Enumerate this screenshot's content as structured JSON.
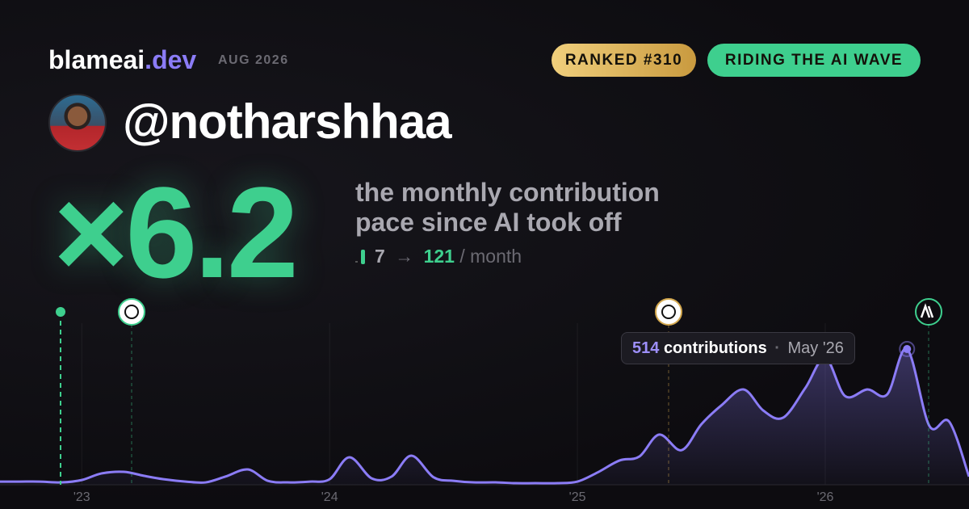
{
  "header": {
    "brand": "blameai",
    "brand_tld": ".dev",
    "date": "AUG 2026"
  },
  "badges": [
    "RANKED #310",
    "RIDING THE AI WAVE"
  ],
  "user": {
    "handle": "@notharshhaa"
  },
  "stat": {
    "multiplier": "×6.2",
    "lines": [
      "the monthly contribution",
      "pace since AI took off"
    ],
    "from": "7",
    "arrow": "→",
    "to": "121",
    "unit": "/ month"
  },
  "tooltip": {
    "label": "contributions",
    "separator": "·",
    "date": "May '26"
  },
  "chart_data": {
    "type": "area",
    "color": "#8b7cf6",
    "x": [
      2022.67,
      2022.75,
      2022.83,
      2022.92,
      2023.0,
      2023.08,
      2023.17,
      2023.25,
      2023.33,
      2023.42,
      2023.5,
      2023.58,
      2023.67,
      2023.75,
      2023.83,
      2023.92,
      2024.0,
      2024.08,
      2024.17,
      2024.25,
      2024.33,
      2024.42,
      2024.5,
      2024.58,
      2024.67,
      2024.75,
      2024.83,
      2024.92,
      2025.0,
      2025.08,
      2025.17,
      2025.25,
      2025.33,
      2025.42,
      2025.5,
      2025.58,
      2025.67,
      2025.75,
      2025.83,
      2025.92,
      2026.0,
      2026.08,
      2026.17,
      2026.25,
      2026.33,
      2026.42,
      2026.5,
      2026.58
    ],
    "values": [
      12,
      12,
      12,
      9,
      18,
      43,
      49,
      34,
      21,
      12,
      9,
      31,
      58,
      15,
      9,
      12,
      21,
      104,
      24,
      31,
      110,
      28,
      15,
      9,
      9,
      6,
      6,
      6,
      12,
      46,
      92,
      107,
      190,
      131,
      229,
      300,
      361,
      281,
      254,
      367,
      480,
      336,
      361,
      342,
      514,
      223,
      239,
      31
    ],
    "xlim": [
      2022.67,
      2026.58
    ],
    "ylim": [
      0,
      673
    ],
    "xticks": [
      {
        "value": 2023,
        "label": "'23"
      },
      {
        "value": 2024,
        "label": "'24"
      },
      {
        "value": 2025,
        "label": "'25"
      },
      {
        "value": 2026,
        "label": "'26"
      }
    ]
  }
}
